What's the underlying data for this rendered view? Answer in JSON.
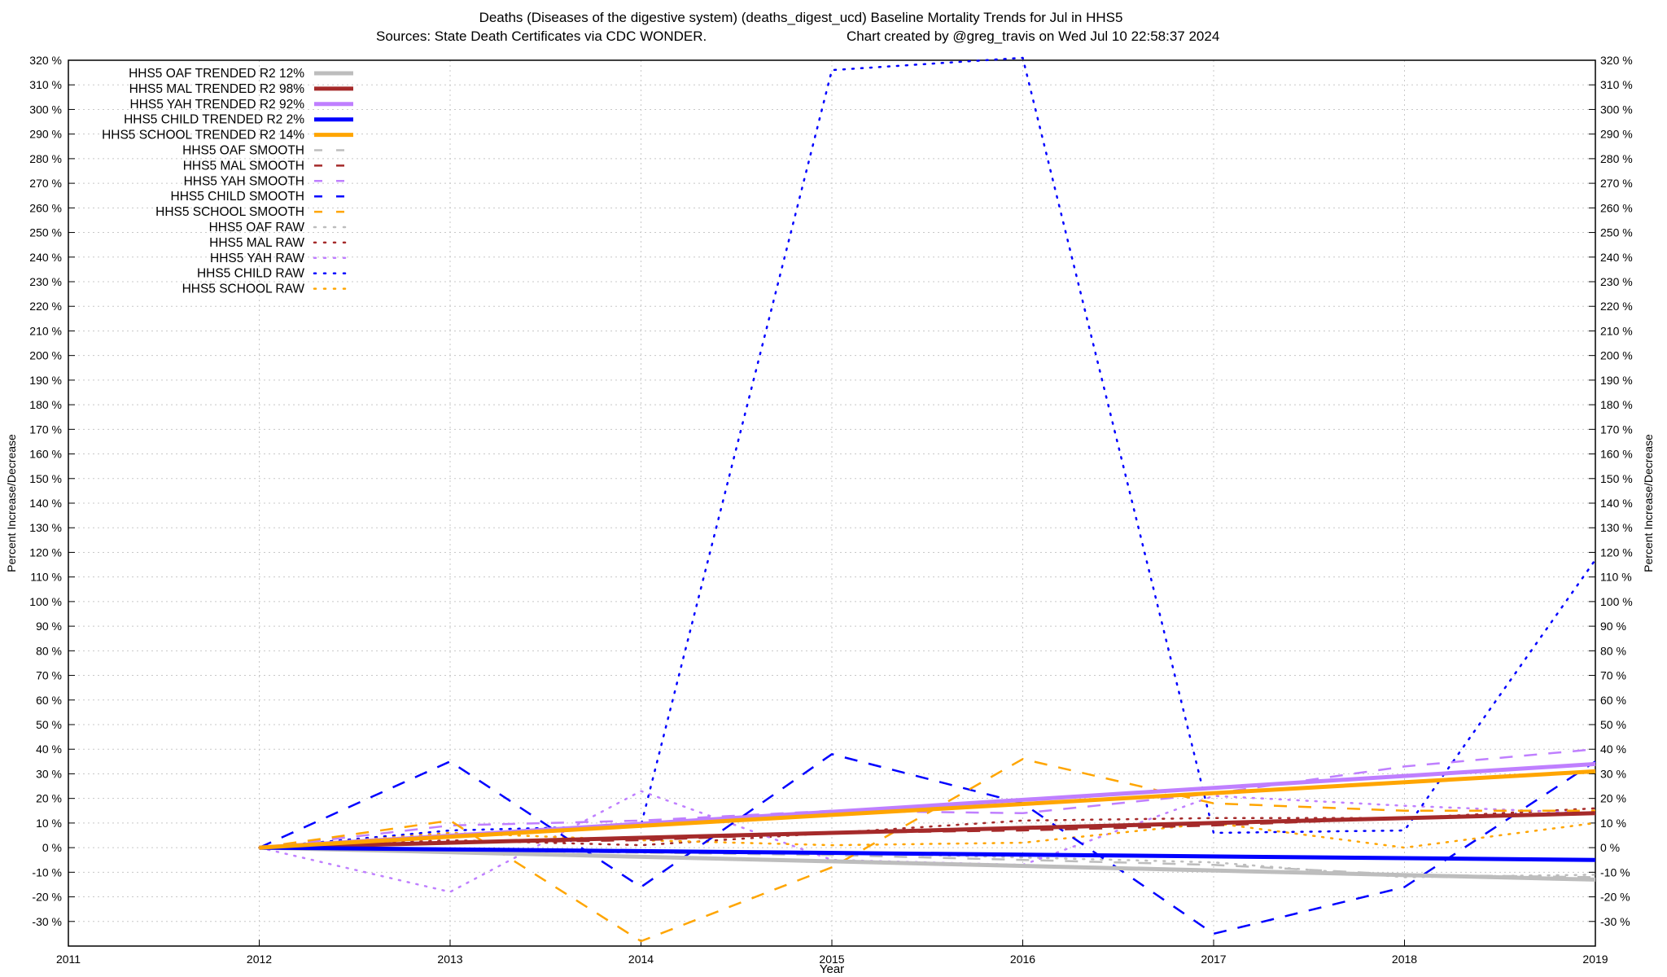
{
  "chart_data": {
    "type": "line",
    "title": "Deaths (Diseases of the digestive system) (deaths_digest_ucd)  Baseline Mortality Trends for Jul in HHS5",
    "subtitle_left": "Sources: State Death Certificates via CDC WONDER.",
    "subtitle_right": "Chart created by @greg_travis on Wed Jul 10 22:58:37 2024",
    "xlabel": "Year",
    "ylabel": "Percent Increase/Decrease",
    "xlim": [
      2011,
      2019
    ],
    "ylim": [
      -40,
      320
    ],
    "x_ticks": [
      2011,
      2012,
      2013,
      2014,
      2015,
      2016,
      2017,
      2018,
      2019
    ],
    "x_tick_labels": [
      "2011",
      "2012",
      "2013",
      "2014",
      "2015",
      "2016",
      "2017",
      "2018",
      "2019"
    ],
    "y_ticks": [
      -30,
      -20,
      -10,
      0,
      10,
      20,
      30,
      40,
      50,
      60,
      70,
      80,
      90,
      100,
      110,
      120,
      130,
      140,
      150,
      160,
      170,
      180,
      190,
      200,
      210,
      220,
      230,
      240,
      250,
      260,
      270,
      280,
      290,
      300,
      310,
      320
    ],
    "y_tick_labels": [
      "-30 %",
      "-20 %",
      "-10 %",
      "0 %",
      "10 %",
      "20 %",
      "30 %",
      "40 %",
      "50 %",
      "60 %",
      "70 %",
      "80 %",
      "90 %",
      "100 %",
      "110 %",
      "120 %",
      "130 %",
      "140 %",
      "150 %",
      "160 %",
      "170 %",
      "180 %",
      "190 %",
      "200 %",
      "210 %",
      "220 %",
      "230 %",
      "240 %",
      "250 %",
      "260 %",
      "270 %",
      "280 %",
      "290 %",
      "300 %",
      "310 %",
      "320 %"
    ],
    "grid": true,
    "legend_position": "top-left",
    "series": [
      {
        "name": "HHS5 OAF TRENDED R2  12%",
        "style": "solid",
        "color": "#bdbdbd",
        "x": [
          2012,
          2019
        ],
        "values": [
          0,
          -13
        ]
      },
      {
        "name": "HHS5 MAL TRENDED R2  98%",
        "style": "solid",
        "color": "#a52a2a",
        "x": [
          2012,
          2019
        ],
        "values": [
          0,
          14
        ]
      },
      {
        "name": "HHS5 YAH TRENDED R2  92%",
        "style": "solid",
        "color": "#bf7fff",
        "x": [
          2012,
          2019
        ],
        "values": [
          0,
          34
        ]
      },
      {
        "name": "HHS5 CHILD TRENDED R2   2%",
        "style": "solid",
        "color": "#0000ff",
        "x": [
          2012,
          2019
        ],
        "values": [
          0,
          -5
        ]
      },
      {
        "name": "HHS5 SCHOOL TRENDED R2  14%",
        "style": "solid",
        "color": "#ffa500",
        "x": [
          2012,
          2019
        ],
        "values": [
          0,
          31
        ]
      },
      {
        "name": "HHS5 OAF SMOOTH",
        "style": "dashed",
        "color": "#bdbdbd",
        "x": [
          2012,
          2013,
          2014,
          2015,
          2016,
          2017,
          2018,
          2019
        ],
        "values": [
          0,
          -1,
          -2,
          -3,
          -5,
          -7,
          -11,
          -12
        ]
      },
      {
        "name": "HHS5 MAL SMOOTH",
        "style": "dashed",
        "color": "#a52a2a",
        "x": [
          2012,
          2013,
          2014,
          2015,
          2016,
          2017,
          2018,
          2019
        ],
        "values": [
          0,
          2,
          3,
          6,
          7,
          9,
          12,
          14
        ]
      },
      {
        "name": "HHS5 YAH SMOOTH",
        "style": "dashed",
        "color": "#bf7fff",
        "x": [
          2012,
          2013,
          2014,
          2015,
          2016,
          2017,
          2018,
          2019
        ],
        "values": [
          0,
          9,
          11,
          15,
          14,
          22,
          33,
          40
        ]
      },
      {
        "name": "HHS5 CHILD SMOOTH",
        "style": "dashed",
        "color": "#0000ff",
        "x": [
          2012,
          2013,
          2014,
          2015,
          2016,
          2017,
          2018,
          2019
        ],
        "values": [
          0,
          35,
          -16,
          38,
          18,
          -35,
          -16,
          35
        ]
      },
      {
        "name": "HHS5 SCHOOL SMOOTH",
        "style": "dashed",
        "color": "#ffa500",
        "x": [
          2012,
          2013,
          2014,
          2015,
          2016,
          2017,
          2018,
          2019
        ],
        "values": [
          0,
          11,
          -38,
          -8,
          36,
          18,
          15,
          15
        ]
      },
      {
        "name": "HHS5 OAF RAW",
        "style": "dotted",
        "color": "#bdbdbd",
        "x": [
          2012,
          2013,
          2014,
          2015,
          2016,
          2017,
          2018,
          2019
        ],
        "values": [
          0,
          -1,
          -2,
          -2,
          -4,
          -6,
          -12,
          -11
        ]
      },
      {
        "name": "HHS5 MAL RAW",
        "style": "dotted",
        "color": "#a52a2a",
        "x": [
          2012,
          2013,
          2014,
          2015,
          2016,
          2017,
          2018,
          2019
        ],
        "values": [
          0,
          3,
          1,
          6,
          11,
          12,
          12,
          16
        ]
      },
      {
        "name": "HHS5 YAH RAW",
        "style": "dotted",
        "color": "#bf7fff",
        "x": [
          2012,
          2013,
          2014,
          2015,
          2016,
          2017,
          2018,
          2019
        ],
        "values": [
          0,
          -18,
          23,
          -5,
          -7,
          21,
          17,
          14
        ]
      },
      {
        "name": "HHS5 CHILD RAW",
        "style": "dotted",
        "color": "#0000ff",
        "x": [
          2012,
          2013,
          2014,
          2015,
          2016,
          2017,
          2018,
          2019
        ],
        "values": [
          0,
          7,
          9,
          316,
          321,
          6,
          7,
          117
        ]
      },
      {
        "name": "HHS5 SCHOOL RAW",
        "style": "dotted",
        "color": "#ffa500",
        "x": [
          2012,
          2013,
          2014,
          2015,
          2016,
          2017,
          2018,
          2019
        ],
        "values": [
          0,
          6,
          3,
          1,
          2,
          10,
          0,
          10
        ]
      }
    ]
  }
}
